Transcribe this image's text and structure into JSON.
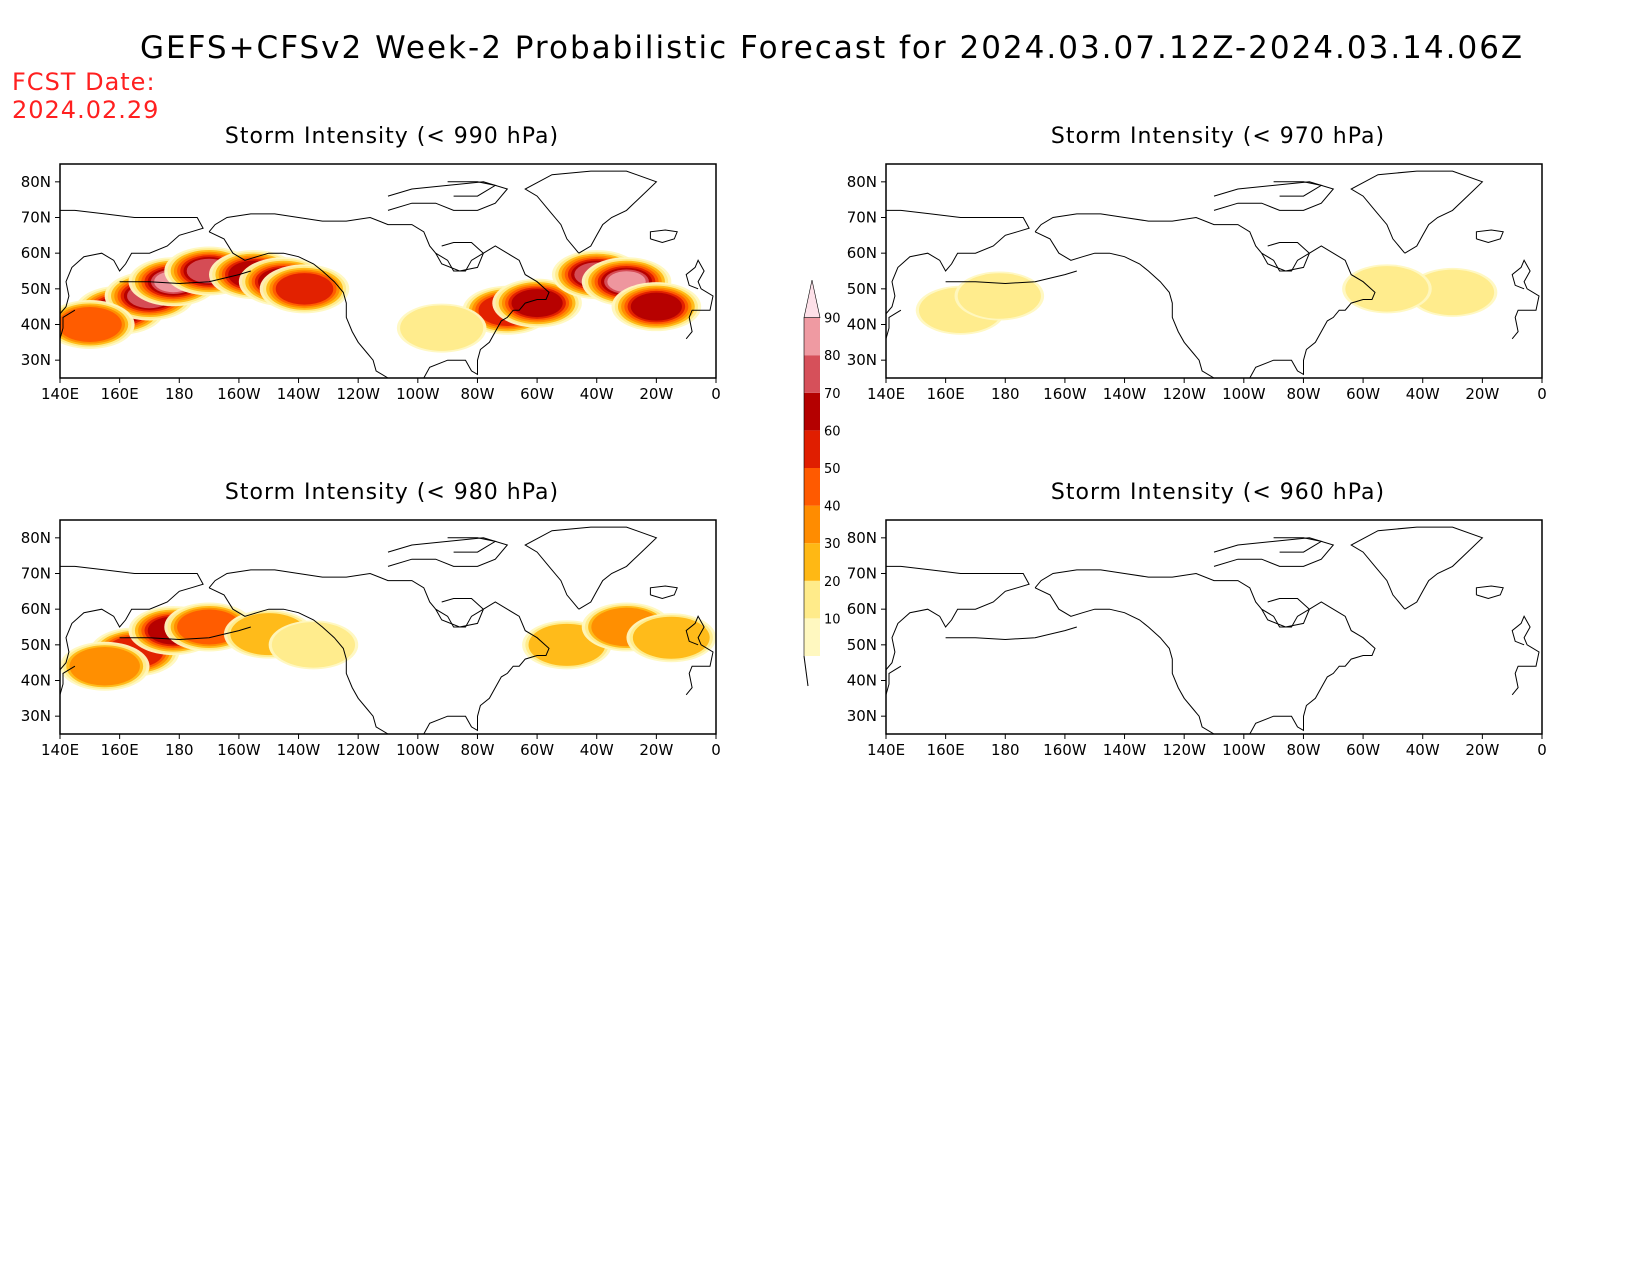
{
  "header": {
    "title": "GEFS+CFSv2 Week-2 Probabilistic Forecast for 2024.03.07.12Z-2024.03.14.06Z",
    "fcst_label": "FCST Date:",
    "fcst_date": "2024.02.29"
  },
  "axes": {
    "lat_labels": [
      "80N",
      "70N",
      "60N",
      "50N",
      "40N",
      "30N"
    ],
    "lat_values": [
      80,
      70,
      60,
      50,
      40,
      30
    ],
    "lon_labels": [
      "140E",
      "160E",
      "180",
      "160W",
      "140W",
      "120W",
      "100W",
      "80W",
      "60W",
      "40W",
      "20W",
      "0"
    ],
    "lon_values": [
      140,
      160,
      180,
      200,
      220,
      240,
      260,
      280,
      300,
      320,
      340,
      360
    ],
    "lat_range": [
      25,
      85
    ],
    "lon_range": [
      140,
      360
    ]
  },
  "colorbar": {
    "levels": [
      "10",
      "20",
      "30",
      "40",
      "50",
      "60",
      "70",
      "80",
      "90"
    ],
    "colors": [
      "#fff8c0",
      "#ffeb8a",
      "#ffb814",
      "#ff8c00",
      "#ff5a00",
      "#e01e00",
      "#b40000",
      "#d6505a",
      "#ef9aa2",
      "#fde0e8"
    ]
  },
  "panels": [
    {
      "title": "Storm Intensity (< 990 hPa)",
      "blobs": [
        {
          "lon": 160,
          "lat": 44,
          "level": 6
        },
        {
          "lon": 170,
          "lat": 48,
          "level": 7
        },
        {
          "lon": 178,
          "lat": 52,
          "level": 8
        },
        {
          "lon": 190,
          "lat": 55,
          "level": 7
        },
        {
          "lon": 205,
          "lat": 54,
          "level": 6
        },
        {
          "lon": 215,
          "lat": 52,
          "level": 6
        },
        {
          "lon": 222,
          "lat": 50,
          "level": 5
        },
        {
          "lon": 150,
          "lat": 40,
          "level": 4
        },
        {
          "lon": 290,
          "lat": 44,
          "level": 5
        },
        {
          "lon": 300,
          "lat": 46,
          "level": 6
        },
        {
          "lon": 320,
          "lat": 54,
          "level": 7
        },
        {
          "lon": 330,
          "lat": 52,
          "level": 8
        },
        {
          "lon": 340,
          "lat": 45,
          "level": 6
        },
        {
          "lon": 268,
          "lat": 39,
          "level": 1
        }
      ]
    },
    {
      "title": "Storm Intensity (< 970 hPa)",
      "blobs": [
        {
          "lon": 165,
          "lat": 44,
          "level": 1
        },
        {
          "lon": 178,
          "lat": 48,
          "level": 1
        },
        {
          "lon": 330,
          "lat": 49,
          "level": 1
        },
        {
          "lon": 308,
          "lat": 50,
          "level": 1
        }
      ]
    },
    {
      "title": "Storm Intensity (< 980 hPa)",
      "blobs": [
        {
          "lon": 165,
          "lat": 48,
          "level": 5
        },
        {
          "lon": 178,
          "lat": 54,
          "level": 6
        },
        {
          "lon": 190,
          "lat": 55,
          "level": 4
        },
        {
          "lon": 210,
          "lat": 53,
          "level": 2
        },
        {
          "lon": 225,
          "lat": 50,
          "level": 1
        },
        {
          "lon": 155,
          "lat": 44,
          "level": 3
        },
        {
          "lon": 310,
          "lat": 50,
          "level": 2
        },
        {
          "lon": 330,
          "lat": 55,
          "level": 3
        },
        {
          "lon": 345,
          "lat": 52,
          "level": 2
        }
      ]
    },
    {
      "title": "Storm Intensity (< 960 hPa)",
      "blobs": []
    }
  ]
}
